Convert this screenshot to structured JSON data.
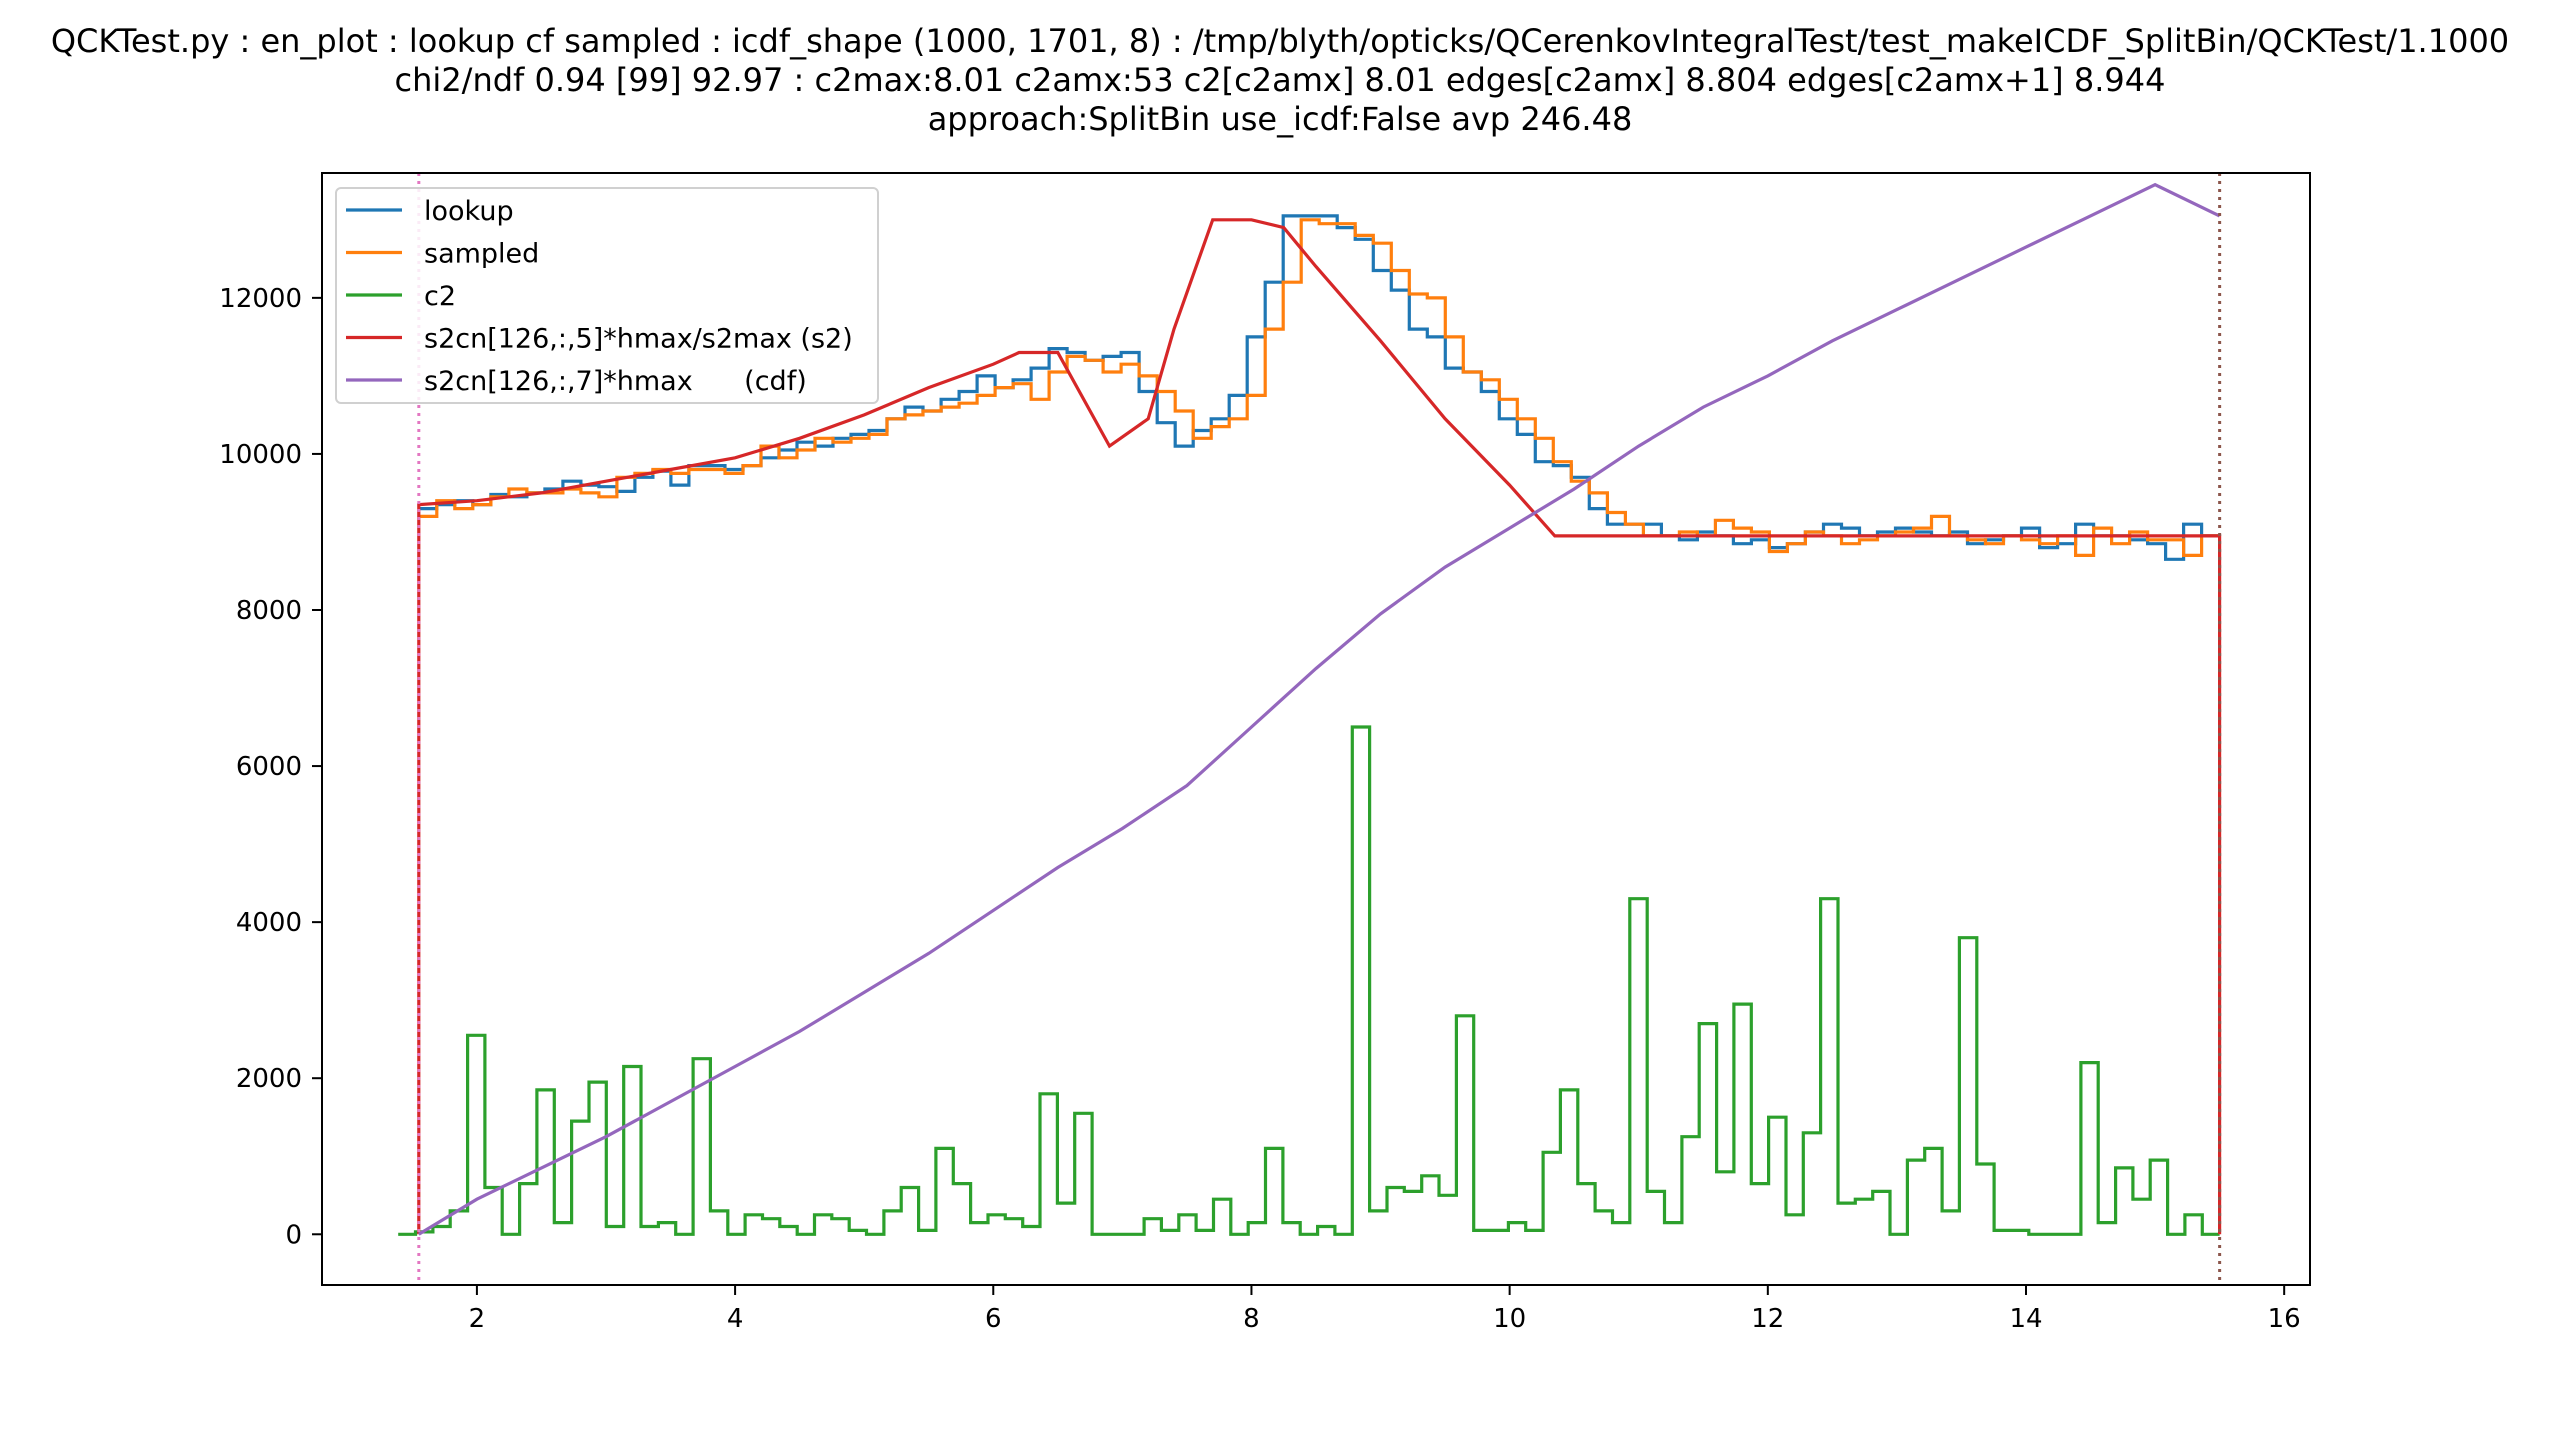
{
  "title_lines": [
    "QCKTest.py : en_plot : lookup cf sampled : icdf_shape (1000, 1701, 8) : /tmp/blyth/opticks/QCerenkovIntegralTest/test_makeICDF_SplitBin/QCKTest/1.1000",
    "chi2/ndf 0.94 [99] 92.97  :  c2max:8.01 c2amx:53 c2[c2amx] 8.01 edges[c2amx] 8.804 edges[c2amx+1] 8.944",
    "approach:SplitBin use_icdf:False avp 246.48"
  ],
  "chart_data": {
    "type": "line",
    "xlim": [
      0.8,
      16.2
    ],
    "ylim": [
      -650,
      13600
    ],
    "x_ticks": [
      2,
      4,
      6,
      8,
      10,
      12,
      14,
      16
    ],
    "y_ticks": [
      0,
      2000,
      4000,
      6000,
      8000,
      10000,
      12000
    ],
    "grid": false,
    "legend_position": "top-left",
    "vlines": [
      {
        "x": 1.55,
        "color": "#e377c2",
        "style": "dotted"
      },
      {
        "x": 15.5,
        "color": "#8c564b",
        "style": "dotted"
      }
    ],
    "series": [
      {
        "name": "lookup",
        "color": "#1f77b4",
        "style": "step",
        "edges_start": 1.55,
        "edges_end": 15.5,
        "values": [
          9300,
          9350,
          9400,
          9350,
          9480,
          9450,
          9500,
          9550,
          9650,
          9600,
          9580,
          9520,
          9700,
          9780,
          9600,
          9850,
          9850,
          9800,
          9850,
          9950,
          10050,
          10150,
          10100,
          10200,
          10250,
          10300,
          10450,
          10600,
          10550,
          10700,
          10800,
          11000,
          10850,
          10950,
          11100,
          11350,
          11300,
          11200,
          11250,
          11300,
          10800,
          10400,
          10100,
          10300,
          10450,
          10750,
          11500,
          12200,
          13050,
          13050,
          13050,
          12900,
          12750,
          12350,
          12100,
          11600,
          11500,
          11100,
          11050,
          10800,
          10450,
          10250,
          9900,
          9850,
          9700,
          9300,
          9100,
          9100,
          9100,
          8950,
          8900,
          9000,
          8950,
          8850,
          8900,
          8800,
          8850,
          9000,
          9100,
          9050,
          8950,
          9000,
          9050,
          9000,
          8950,
          9000,
          8850,
          8900,
          8950,
          9050,
          8800,
          8850,
          9100,
          8950,
          8950,
          8900,
          8850,
          8650,
          9100,
          8950
        ]
      },
      {
        "name": "sampled",
        "color": "#ff7f0e",
        "style": "step",
        "edges_start": 1.55,
        "edges_end": 15.5,
        "values": [
          9200,
          9400,
          9300,
          9350,
          9450,
          9550,
          9500,
          9500,
          9550,
          9500,
          9450,
          9700,
          9750,
          9800,
          9750,
          9800,
          9800,
          9750,
          9850,
          10100,
          9950,
          10050,
          10200,
          10150,
          10200,
          10250,
          10450,
          10500,
          10550,
          10600,
          10650,
          10750,
          10850,
          10900,
          10700,
          11050,
          11250,
          11200,
          11050,
          11150,
          11000,
          10800,
          10550,
          10200,
          10350,
          10450,
          10750,
          11600,
          12200,
          13000,
          12950,
          12950,
          12800,
          12700,
          12350,
          12050,
          12000,
          11500,
          11050,
          10950,
          10700,
          10450,
          10200,
          9900,
          9650,
          9500,
          9250,
          9100,
          8950,
          8950,
          9000,
          8950,
          9150,
          9050,
          9000,
          8750,
          8850,
          9000,
          8950,
          8850,
          8900,
          8950,
          9000,
          9050,
          9200,
          8950,
          8900,
          8850,
          8950,
          8900,
          8850,
          8950,
          8700,
          9050,
          8850,
          9000,
          8900,
          8900,
          8700,
          8950
        ]
      },
      {
        "name": "c2",
        "color": "#2ca02c",
        "style": "step",
        "edges_start": 1.39,
        "edges_end": 15.5,
        "values": [
          0,
          30,
          100,
          300,
          2550,
          600,
          0,
          650,
          1850,
          150,
          1450,
          1950,
          100,
          2150,
          100,
          150,
          0,
          2250,
          300,
          0,
          250,
          200,
          100,
          0,
          250,
          200,
          50,
          0,
          300,
          600,
          50,
          1100,
          650,
          150,
          250,
          200,
          100,
          1800,
          400,
          1550,
          0,
          0,
          0,
          200,
          50,
          250,
          50,
          450,
          0,
          150,
          1100,
          150,
          0,
          100,
          0,
          6500,
          300,
          600,
          550,
          750,
          500,
          2800,
          50,
          50,
          150,
          50,
          1050,
          1850,
          650,
          300,
          150,
          4300,
          550,
          150,
          1250,
          2700,
          800,
          2950,
          650,
          1500,
          250,
          1300,
          4300,
          400,
          450,
          550,
          0,
          950,
          1100,
          300,
          3800,
          900,
          50,
          50,
          0,
          0,
          0,
          2200,
          150,
          850,
          450,
          950,
          0,
          250,
          0
        ]
      },
      {
        "name": "s2cn[126,:,5]*hmax/s2max (s2)",
        "color": "#d62728",
        "style": "line",
        "x": [
          1.55,
          1.55,
          2.0,
          2.5,
          3.0,
          3.5,
          4.0,
          4.5,
          5.0,
          5.5,
          6.0,
          6.2,
          6.5,
          6.9,
          7.2,
          7.4,
          7.7,
          8.0,
          8.25,
          8.5,
          9.0,
          9.5,
          10.0,
          10.35,
          10.6,
          11.0,
          12.0,
          13.0,
          14.0,
          15.0,
          15.5,
          15.5
        ],
        "y": [
          0,
          9350,
          9400,
          9500,
          9650,
          9800,
          9950,
          10200,
          10500,
          10850,
          11150,
          11300,
          11300,
          10100,
          10450,
          11600,
          13000,
          13000,
          12900,
          12400,
          11450,
          10450,
          9600,
          8950,
          8950,
          8950,
          8950,
          8950,
          8950,
          8950,
          8950,
          0
        ]
      },
      {
        "name": "s2cn[126,:,7]*hmax      (cdf)",
        "color": "#9467bd",
        "style": "line",
        "x": [
          1.55,
          2.0,
          2.5,
          3.0,
          3.5,
          4.0,
          4.5,
          5.0,
          5.5,
          6.0,
          6.5,
          7.0,
          7.5,
          8.0,
          8.5,
          9.0,
          9.5,
          10.0,
          10.5,
          11.0,
          11.5,
          12.0,
          12.5,
          13.0,
          13.5,
          14.0,
          14.5,
          15.0,
          15.5
        ],
        "y": [
          0,
          450,
          850,
          1250,
          1700,
          2150,
          2600,
          3100,
          3600,
          4150,
          4700,
          5200,
          5750,
          6500,
          7250,
          7950,
          8550,
          9050,
          9550,
          10100,
          10600,
          11000,
          11450,
          11850,
          12250,
          12650,
          13050,
          13450,
          13050
        ]
      }
    ]
  }
}
